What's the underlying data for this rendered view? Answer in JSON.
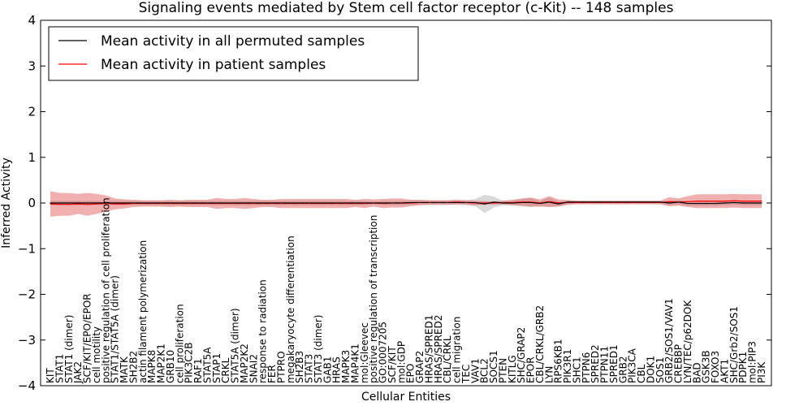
{
  "chart_data": {
    "type": "line",
    "title": "Signaling events mediated by Stem cell factor receptor (c-Kit) -- 148 samples",
    "xlabel": "Cellular Entities",
    "ylabel": "Inferred Activity",
    "ylim": [
      -4,
      4
    ],
    "yticks": [
      "−4",
      "−3",
      "−2",
      "−1",
      "0",
      "1",
      "2",
      "3",
      "4"
    ],
    "legend": {
      "position": "top-left",
      "entries": [
        {
          "label": "Mean activity in all permuted samples",
          "color": "#000000"
        },
        {
          "label": "Mean activity in patient samples",
          "color": "#ff0000"
        }
      ]
    },
    "categories": [
      "KIT",
      "STAT1",
      "STAT1 (dimer)",
      "JAK2",
      "SCF/KIT/EPO/EPOR",
      "cell motility",
      "positive regulation of cell proliferation",
      "STAT1/STAT5A (dimer)",
      "MATK",
      "SH2B2",
      "actin filament polymerization",
      "MAPK8",
      "MAP2K1",
      "GRB10",
      "cell proliferation",
      "PIK3C2B",
      "RAF1",
      "STAT5A",
      "STAP1",
      "CRKL",
      "STAT5A (dimer)",
      "MAP2K2",
      "SNAI2",
      "response to radiation",
      "FER",
      "PTPRO",
      "megakaryocyte differentiation",
      "SH2B3",
      "STAT3",
      "STAT3 (dimer)",
      "GAB1",
      "HRAS",
      "MAPK3",
      "MAP4K1",
      "mol:Gleevec",
      "positive regulation of transcription",
      "GO:0007205",
      "SCF/KIT",
      "mol:GDP",
      "EPO",
      "GRAP2",
      "HRAS/SPRED1",
      "HRAS/SPRED2",
      "CBL/CRKL",
      "cell migration",
      "TEC",
      "VAV1",
      "BCL2",
      "SOCS1",
      "PTEN",
      "KITLG",
      "SHC/GRAP2",
      "EPOR",
      "CBL/CRKL/GRB2",
      "LYN",
      "RPS6KB1",
      "PIK3R1",
      "SHC1",
      "PTPN6",
      "SPRED2",
      "PTPN11",
      "SPRED1",
      "GRB2",
      "PIK3CA",
      "CBL",
      "DOK1",
      "SOS1",
      "GRB2/SOS1/VAV1",
      "CREBBP",
      "LYN/TEC/p62DOK",
      "BAD",
      "GSK3B",
      "FOXO3",
      "AKT1",
      "SHC/Grb2/SOS1",
      "PDPK1",
      "mol:PIP3",
      "PI3K"
    ],
    "series": [
      {
        "name": "Mean activity in all permuted samples",
        "color": "#000000",
        "values": [
          0,
          0,
          0,
          0,
          0,
          0,
          0,
          0,
          0,
          0,
          0,
          0,
          0,
          0,
          0,
          0,
          0,
          0,
          0,
          0,
          0,
          0,
          0,
          0,
          0,
          0,
          0,
          0,
          0,
          0,
          0,
          0,
          0,
          0,
          0,
          0,
          0,
          0,
          0,
          0.01,
          0.01,
          0.01,
          0.01,
          0.01,
          0.01,
          0.01,
          0.01,
          -0.02,
          0.02,
          0,
          0,
          0.01,
          0.01,
          -0.01,
          0.02,
          -0.02,
          0.02,
          0.02,
          0.02,
          0.02,
          0.02,
          0.02,
          0.02,
          0.02,
          0.02,
          0.02,
          0.02,
          0,
          0.02,
          -0.01,
          -0.01,
          -0.01,
          -0.01,
          0,
          0.01,
          0,
          0,
          0
        ],
        "band": [
          0.05,
          0.05,
          0.05,
          0.05,
          0.05,
          0.05,
          0.05,
          0.05,
          0.05,
          0.05,
          0.05,
          0.05,
          0.05,
          0.05,
          0.05,
          0.05,
          0.05,
          0.05,
          0.05,
          0.05,
          0.05,
          0.05,
          0.05,
          0.05,
          0.05,
          0.05,
          0.05,
          0.05,
          0.05,
          0.05,
          0.05,
          0.05,
          0.05,
          0.05,
          0.05,
          0.03,
          0.05,
          0.05,
          0.05,
          0.05,
          0.05,
          0.05,
          0.05,
          0.05,
          0.05,
          0.05,
          0.08,
          0.2,
          0.12,
          0.05,
          0.05,
          0.08,
          0.1,
          0.05,
          0.1,
          0.05,
          0.05,
          0.03,
          0.03,
          0.03,
          0.03,
          0.03,
          0.03,
          0.03,
          0.03,
          0.03,
          0.03,
          0.05,
          0.05,
          0.05,
          0.05,
          0.05,
          0.05,
          0.05,
          0.05,
          0.05,
          0.05,
          0.05
        ]
      },
      {
        "name": "Mean activity in patient samples",
        "color": "#ff0000",
        "values": [
          -0.02,
          -0.03,
          -0.03,
          -0.02,
          -0.03,
          -0.02,
          -0.01,
          -0.02,
          -0.02,
          -0.01,
          -0.01,
          -0.01,
          -0.01,
          -0.01,
          -0.01,
          -0.01,
          -0.01,
          -0.01,
          -0.01,
          -0.01,
          -0.01,
          -0.01,
          -0.01,
          -0.01,
          -0.01,
          -0.01,
          -0.01,
          -0.01,
          -0.01,
          -0.01,
          -0.01,
          -0.01,
          -0.01,
          -0.01,
          -0.01,
          0,
          -0.01,
          0,
          0,
          0,
          0.01,
          0.01,
          0.01,
          0.01,
          0.02,
          0.01,
          0,
          0,
          0,
          0.01,
          0.01,
          0.02,
          0.02,
          0,
          0.03,
          0,
          0.01,
          0.01,
          0.01,
          0.01,
          0.01,
          0.01,
          0.01,
          0.01,
          0.01,
          0.01,
          0.01,
          0.03,
          0.02,
          0.03,
          0.04,
          0.04,
          0.04,
          0.04,
          0.05,
          0.04,
          0.04,
          0.04
        ],
        "band": [
          0.28,
          0.25,
          0.25,
          0.22,
          0.25,
          0.22,
          0.18,
          0.12,
          0.1,
          0.08,
          0.07,
          0.07,
          0.07,
          0.08,
          0.07,
          0.08,
          0.08,
          0.08,
          0.12,
          0.1,
          0.1,
          0.12,
          0.1,
          0.08,
          0.08,
          0.1,
          0.1,
          0.1,
          0.1,
          0.1,
          0.1,
          0.1,
          0.1,
          0.08,
          0.1,
          0.08,
          0.1,
          0.1,
          0.1,
          0.07,
          0.06,
          0.05,
          0.05,
          0.05,
          0.05,
          0.05,
          0.05,
          0.04,
          0.03,
          0.04,
          0.06,
          0.08,
          0.1,
          0.08,
          0.12,
          0.08,
          0.05,
          0.04,
          0.04,
          0.04,
          0.04,
          0.04,
          0.04,
          0.04,
          0.04,
          0.04,
          0.04,
          0.1,
          0.08,
          0.12,
          0.15,
          0.15,
          0.15,
          0.15,
          0.15,
          0.15,
          0.15,
          0.15
        ]
      }
    ]
  }
}
